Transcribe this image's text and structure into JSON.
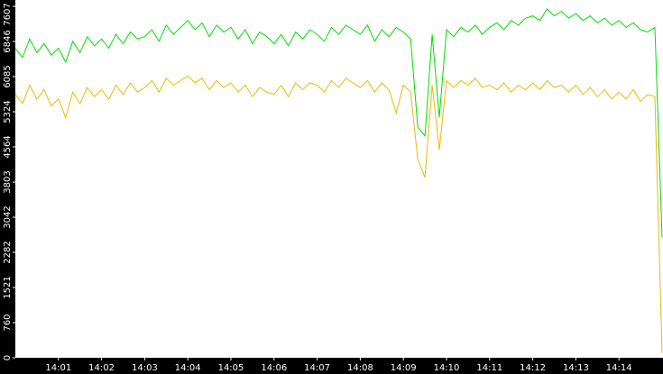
{
  "chart_data": {
    "type": "line",
    "categories": [
      null,
      null,
      null,
      null,
      null,
      null,
      "14:01",
      null,
      null,
      null,
      null,
      null,
      "14:02",
      null,
      null,
      null,
      null,
      null,
      "14:03",
      null,
      null,
      null,
      null,
      null,
      "14:04",
      null,
      null,
      null,
      null,
      null,
      "14:05",
      null,
      null,
      null,
      null,
      null,
      "14:06",
      null,
      null,
      null,
      null,
      null,
      "14:07",
      null,
      null,
      null,
      null,
      null,
      "14:08",
      null,
      null,
      null,
      null,
      null,
      "14:09",
      null,
      null,
      null,
      null,
      null,
      "14:10",
      null,
      null,
      null,
      null,
      null,
      "14:11",
      null,
      null,
      null,
      null,
      null,
      "14:12",
      null,
      null,
      null,
      null,
      null,
      "14:13",
      null,
      null,
      null,
      null,
      null,
      "14:14",
      null,
      null,
      null,
      null,
      null,
      null
    ],
    "series": [
      {
        "color": "#f0b800",
        "values": [
          5700,
          5500,
          5900,
          5600,
          5800,
          5450,
          5600,
          5200,
          5750,
          5500,
          5850,
          5650,
          5800,
          5600,
          5900,
          5700,
          5950,
          5750,
          5850,
          6000,
          5750,
          6050,
          5900,
          6000,
          6100,
          5950,
          6050,
          5800,
          6000,
          5850,
          5950,
          5750,
          5900,
          5650,
          5850,
          5750,
          5700,
          5900,
          5650,
          5950,
          5800,
          5950,
          5900,
          5750,
          6000,
          5850,
          6050,
          5950,
          5850,
          6000,
          5750,
          5950,
          5800,
          5300,
          5900,
          5750,
          4300,
          3900,
          5900,
          4500,
          6000,
          5850,
          6000,
          5900,
          6050,
          5850,
          5900,
          5800,
          5950,
          5750,
          5900,
          5800,
          5950,
          5800,
          6000,
          5850,
          5900,
          5750,
          5900,
          5700,
          5850,
          5650,
          5800,
          5600,
          5750,
          5600,
          5800,
          5550,
          5700,
          5650,
          100
        ]
      },
      {
        "color": "#00e000",
        "values": [
          6700,
          6500,
          6900,
          6600,
          6800,
          6550,
          6700,
          6400,
          6850,
          6600,
          6950,
          6750,
          6900,
          6700,
          7000,
          6800,
          7050,
          6900,
          6950,
          7100,
          6850,
          7200,
          7000,
          7150,
          7300,
          7100,
          7250,
          6950,
          7200,
          7050,
          7150,
          6900,
          7100,
          6800,
          7050,
          6950,
          6800,
          7000,
          6750,
          7050,
          6900,
          7100,
          7000,
          6850,
          7150,
          7000,
          7200,
          7100,
          7000,
          7200,
          6850,
          7100,
          6950,
          7150,
          7050,
          6900,
          5000,
          4800,
          7000,
          5200,
          7100,
          6950,
          7150,
          7050,
          7200,
          7000,
          7150,
          7250,
          7100,
          7300,
          7200,
          7350,
          7400,
          7300,
          7550,
          7400,
          7500,
          7350,
          7450,
          7300,
          7400,
          7250,
          7350,
          7200,
          7300,
          7150,
          7250,
          7100,
          7050,
          7150,
          2600
        ]
      }
    ],
    "ylim": [
      0,
      7607
    ],
    "yticks": [
      0,
      760,
      1521,
      2282,
      3042,
      3803,
      4564,
      5324,
      6085,
      6846,
      7607
    ]
  }
}
